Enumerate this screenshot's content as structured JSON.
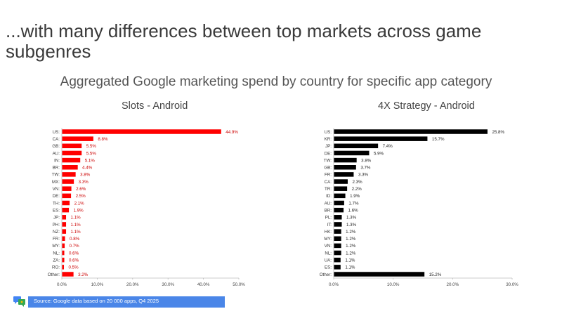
{
  "slide": {
    "title": "...with many differences between top markets across game subgenres",
    "subtitle": "Aggregated Google marketing spend by country for specific app category",
    "source": "Source: Google data based on 20 000 apps, Q4 2025"
  },
  "colors": {
    "slots": "#ff0000",
    "strategy": "#000000",
    "source_bar": "#4a86e8"
  },
  "chart_data": [
    {
      "type": "bar",
      "orientation": "horizontal",
      "title": "Slots -  Android",
      "categories": [
        "US:",
        "CA:",
        "GB:",
        "AU:",
        "IN:",
        "BR:",
        "TW:",
        "MX:",
        "VN:",
        "DE:",
        "TH:",
        "ES:",
        "JP:",
        "PH:",
        "NZ:",
        "FR:",
        "MY:",
        "NL:",
        "ZA:",
        "RO:",
        "Other:"
      ],
      "values": [
        44.9,
        8.8,
        5.5,
        5.5,
        5.1,
        4.4,
        3.8,
        3.3,
        2.6,
        2.5,
        2.1,
        1.9,
        1.1,
        1.1,
        1.1,
        0.8,
        0.7,
        0.6,
        0.6,
        0.5,
        3.2
      ],
      "data_labels": [
        "44.9%",
        "8.8%",
        "5.5%",
        "5.5%",
        "5.1%",
        "4.4%",
        "3.8%",
        "3.3%",
        "2.6%",
        "2.5%",
        "2.1%",
        "1.9%",
        "1.1%",
        "1.1%",
        "1.1%",
        "0.8%",
        "0.7%",
        "0.6%",
        "0.6%",
        "0.5%",
        "3.2%"
      ],
      "xlim": [
        0,
        50
      ],
      "xticks": [
        "0.0%",
        "10.0%",
        "20.0%",
        "30.0%",
        "40.0%",
        "50.0%"
      ],
      "grid": false,
      "color": "#ff0000"
    },
    {
      "type": "bar",
      "orientation": "horizontal",
      "title": "4X Strategy - Android",
      "categories": [
        "US:",
        "KR:",
        "JP:",
        "DE:",
        "TW:",
        "GB:",
        "FR:",
        "CA:",
        "TR:",
        "ID:",
        "AU:",
        "BR:",
        "PL:",
        "IT:",
        "HK:",
        "MY:",
        "VN:",
        "NL:",
        "UA:",
        "ES:",
        "Other:"
      ],
      "values": [
        25.8,
        15.7,
        7.4,
        5.9,
        3.8,
        3.7,
        3.3,
        2.3,
        2.2,
        1.9,
        1.7,
        1.6,
        1.3,
        1.3,
        1.2,
        1.2,
        1.2,
        1.2,
        1.1,
        1.1,
        15.2
      ],
      "data_labels": [
        "25.8%",
        "15.7%",
        "7.4%",
        "5.9%",
        "3.8%",
        "3.7%",
        "3.3%",
        "2.3%",
        "2.2%",
        "1.9%",
        "1.7%",
        "1.6%",
        "1.3%",
        "1.3%",
        "1.2%",
        "1.2%",
        "1.2%",
        "1.2%",
        "1.1%",
        "1.1%",
        "15.2%"
      ],
      "xlim": [
        0,
        30
      ],
      "xticks": [
        "0.0%",
        "10.0%",
        "20.0%",
        "30.0%"
      ],
      "grid": false,
      "color": "#000000"
    }
  ]
}
